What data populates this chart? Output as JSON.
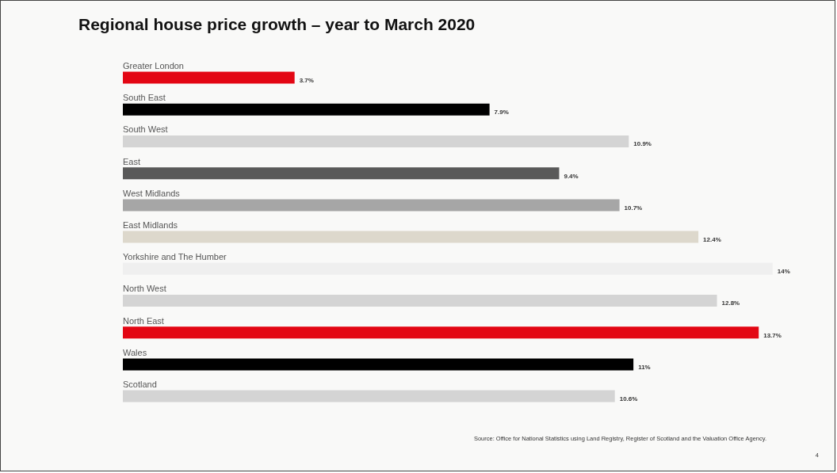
{
  "chart_data": {
    "type": "bar",
    "orientation": "horizontal",
    "title": "Regional house price growth – year to March 2020",
    "categories": [
      "Greater London",
      "South East",
      "South West",
      "East",
      "West Midlands",
      "East Midlands",
      "Yorkshire and The Humber",
      "North West",
      "North East",
      "Wales",
      "Scotland"
    ],
    "values": [
      3.7,
      7.9,
      10.9,
      9.4,
      10.7,
      12.4,
      14,
      12.8,
      13.7,
      11,
      10.6
    ],
    "value_labels": [
      "3.7%",
      "7.9%",
      "10.9%",
      "9.4%",
      "10.7%",
      "12.4%",
      "14%",
      "12.8%",
      "13.7%",
      "11%",
      "10.6%"
    ],
    "colors": [
      "#e30613",
      "#000000",
      "#d4d4d4",
      "#595959",
      "#a6a6a6",
      "#ddd8cc",
      "#efefef",
      "#d4d4d4",
      "#e30613",
      "#000000",
      "#d4d4d4"
    ],
    "annotations": [
      "Source: Office for National Statistics using Land Registry, Register of Scotland and the Valuation Office Agency.",
      "4"
    ]
  }
}
